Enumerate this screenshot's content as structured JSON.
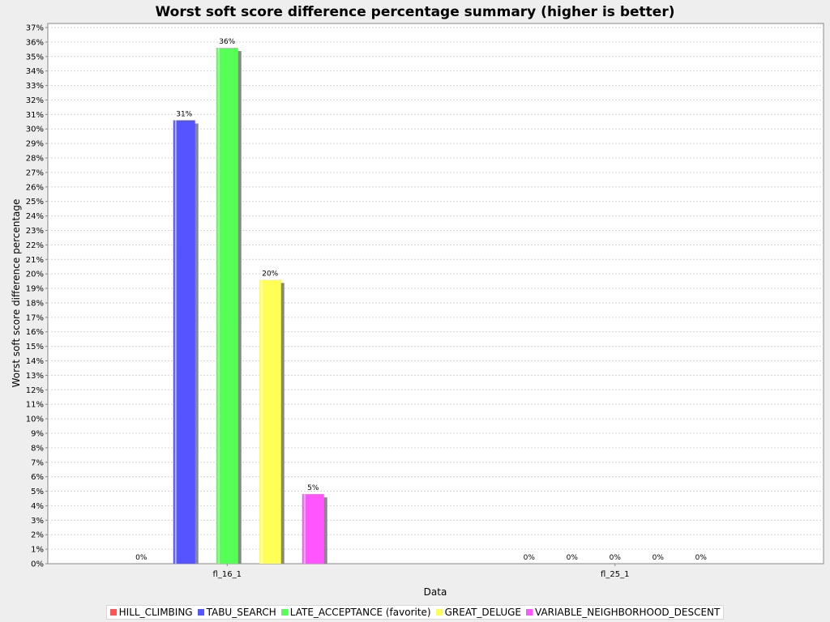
{
  "chart_data": {
    "type": "bar",
    "title": "Worst soft score difference percentage summary (higher is better)",
    "xlabel": "Data",
    "ylabel": "Worst soft score difference percentage",
    "categories": [
      "fl_16_1",
      "fl_25_1"
    ],
    "ylim": [
      0,
      37
    ],
    "ytick_step": 1,
    "y_tick_suffix": "%",
    "grid": true,
    "legend_position": "bottom",
    "series": [
      {
        "name": "HILL_CLIMBING",
        "color": "#ff5555",
        "values": [
          0,
          0
        ],
        "labels": [
          "0%",
          "0%"
        ]
      },
      {
        "name": "TABU_SEARCH",
        "color": "#5555ff",
        "values": [
          30.6,
          0
        ],
        "labels": [
          "31%",
          "0%"
        ]
      },
      {
        "name": "LATE_ACCEPTANCE (favorite)",
        "color": "#55ff55",
        "values": [
          35.6,
          0
        ],
        "labels": [
          "36%",
          "0%"
        ]
      },
      {
        "name": "GREAT_DELUGE",
        "color": "#ffff55",
        "values": [
          19.6,
          0
        ],
        "labels": [
          "20%",
          "0%"
        ]
      },
      {
        "name": "VARIABLE_NEIGHBORHOOD_DESCENT",
        "color": "#ff55ff",
        "values": [
          4.8,
          0
        ],
        "labels": [
          "5%",
          "0%"
        ]
      }
    ]
  }
}
